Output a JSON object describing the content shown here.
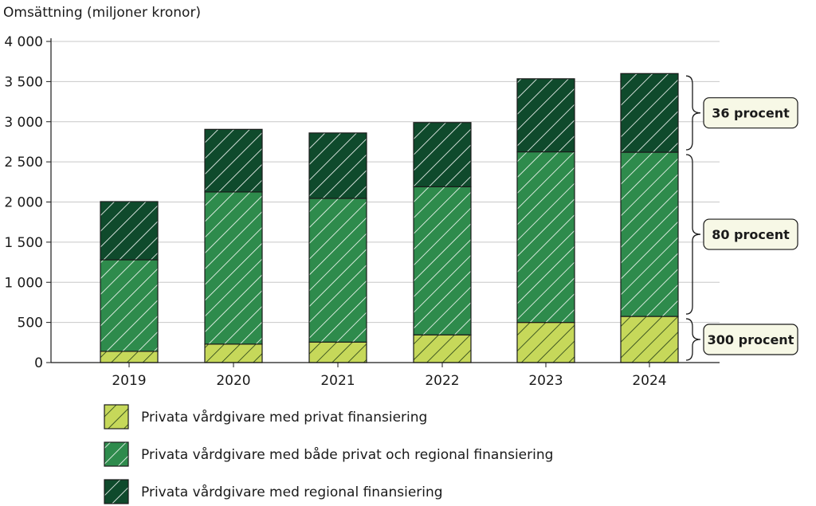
{
  "chart_data": {
    "type": "bar",
    "stacked": true,
    "ylabel": "Omsättning (miljoner kronor)",
    "ylim": [
      0,
      4000
    ],
    "yticks": [
      0,
      500,
      1000,
      1500,
      2000,
      2500,
      3000,
      3500,
      4000
    ],
    "ytick_labels": [
      "0",
      "500",
      "1 000",
      "1 500",
      "2 000",
      "2 500",
      "3 000",
      "3 500",
      "4 000"
    ],
    "categories": [
      "2019",
      "2020",
      "2021",
      "2022",
      "2023",
      "2024"
    ],
    "grid": true,
    "legend_position": "bottom",
    "series": [
      {
        "name": "Privata vårdgivare med privat finansiering",
        "values": [
          140,
          230,
          255,
          345,
          500,
          575
        ],
        "color": "#c6d85a",
        "hatch_color": "#1f3a14"
      },
      {
        "name": "Privata vårdgivare med både privat och regional finansiering",
        "values": [
          1140,
          1895,
          1790,
          1845,
          2125,
          2045
        ],
        "color": "#2e8b4c",
        "hatch_color": "#ffffff"
      },
      {
        "name": "Privata vårdgivare med regional finansiering",
        "values": [
          725,
          780,
          815,
          800,
          910,
          980
        ],
        "color": "#0f4a2c",
        "hatch_color": "#ffffff"
      }
    ],
    "annotations": [
      {
        "text": "36 procent",
        "category": "2024",
        "series": 2
      },
      {
        "text": "80 procent",
        "category": "2024",
        "series": 1
      },
      {
        "text": "300 procent",
        "category": "2024",
        "series": 0
      }
    ]
  }
}
